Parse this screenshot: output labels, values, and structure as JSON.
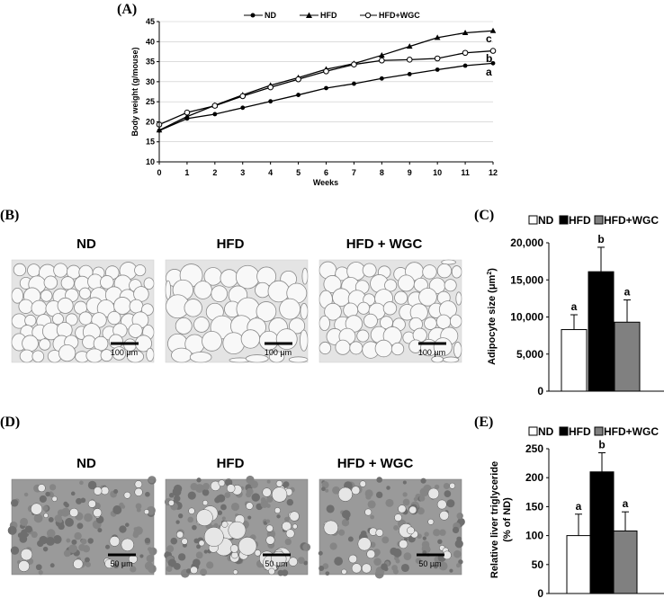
{
  "panels": {
    "A": "(A)",
    "B": "(B)",
    "C": "(C)",
    "D": "(D)",
    "E": "(E)"
  },
  "colors": {
    "ND": "#ffffff",
    "HFD": "#000000",
    "HFD+WGC": "#808080",
    "adipose_bg": "#e4e4e4",
    "liver_bg": "#9a9a9a"
  },
  "chart_data": [
    {
      "id": "A",
      "type": "line",
      "xlabel": "Weeks",
      "ylabel": "Body weight (g/mouse)",
      "xlim": [
        0,
        12
      ],
      "ylim": [
        10,
        45
      ],
      "xticks": [
        "0",
        "1",
        "2",
        "3",
        "4",
        "5",
        "6",
        "7",
        "8",
        "9",
        "10",
        "11",
        "12"
      ],
      "yticks": [
        "10",
        "15",
        "20",
        "25",
        "30",
        "35",
        "40",
        "45"
      ],
      "legend_position": "top-center",
      "x": [
        0,
        1,
        2,
        3,
        4,
        5,
        6,
        7,
        8,
        9,
        10,
        11,
        12
      ],
      "series": [
        {
          "name": "ND",
          "marker": "filled-circle",
          "values": [
            17.8,
            20.8,
            21.9,
            23.5,
            25.1,
            26.7,
            28.4,
            29.5,
            30.8,
            31.9,
            33.0,
            34.0,
            34.6
          ]
        },
        {
          "name": "HFD",
          "marker": "triangle",
          "values": [
            17.9,
            21.3,
            24.1,
            26.7,
            29.1,
            31.0,
            33.1,
            34.5,
            36.6,
            38.8,
            41.0,
            42.2,
            42.7
          ]
        },
        {
          "name": "HFD+WGC",
          "marker": "open-circle",
          "values": [
            19.3,
            22.3,
            24.0,
            26.4,
            28.6,
            30.6,
            32.6,
            34.3,
            35.3,
            35.5,
            35.8,
            37.2,
            37.7
          ]
        }
      ],
      "annotations": [
        "c",
        "b",
        "a"
      ]
    },
    {
      "id": "C",
      "type": "bar",
      "ylabel": "Adipocyte size (μm²)",
      "ylabel_main": "Adipocyte size (μm",
      "ylabel_sup": "2",
      "ylabel_end": ")",
      "ylim": [
        0,
        20000
      ],
      "yticks": [
        "0",
        "5,000",
        "10,000",
        "15,000",
        "20,000"
      ],
      "legend_position": "top",
      "categories": [
        "ND",
        "HFD",
        "HFD+WGC"
      ],
      "values": [
        8300,
        16100,
        9300
      ],
      "errors": [
        2000,
        3300,
        3000
      ],
      "labels": [
        "a",
        "b",
        "a"
      ]
    },
    {
      "id": "E",
      "type": "bar",
      "ylabel_line1": "Relative liver triglyceride",
      "ylabel_line2": "(% of ND)",
      "ylim": [
        0,
        250
      ],
      "yticks": [
        "0",
        "50",
        "100",
        "150",
        "200",
        "250"
      ],
      "legend_position": "top",
      "categories": [
        "ND",
        "HFD",
        "HFD+WGC"
      ],
      "values": [
        100,
        210,
        108
      ],
      "errors": [
        37,
        33,
        33
      ],
      "labels": [
        "a",
        "b",
        "a"
      ]
    }
  ],
  "micrographs": {
    "B": {
      "titles": [
        "ND",
        "HFD",
        "HFD + WGC"
      ],
      "scale_bar": "100 μm"
    },
    "D": {
      "titles": [
        "ND",
        "HFD",
        "HFD + WGC"
      ],
      "scale_bar": "50 μm"
    }
  }
}
